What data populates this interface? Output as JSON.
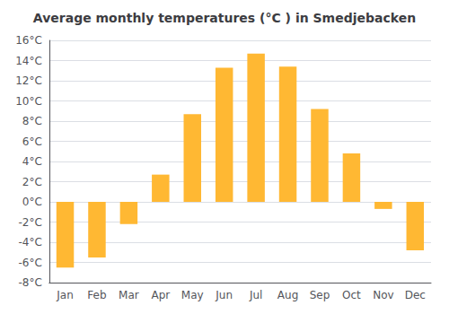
{
  "chart_data": {
    "type": "bar",
    "title": "Average monthly temperatures (°C ) in Smedjebacken",
    "categories": [
      "Jan",
      "Feb",
      "Mar",
      "Apr",
      "May",
      "Jun",
      "Jul",
      "Aug",
      "Sep",
      "Oct",
      "Nov",
      "Dec"
    ],
    "values": [
      -6.5,
      -5.5,
      -2.2,
      2.7,
      8.7,
      13.3,
      14.7,
      13.4,
      9.2,
      4.8,
      -0.7,
      -4.8
    ],
    "color": "#FFB833",
    "ylim": [
      -8,
      16
    ],
    "yticks": [
      {
        "value": -8,
        "label": "-8°C"
      },
      {
        "value": -6,
        "label": "-6°C"
      },
      {
        "value": -4,
        "label": "-4°C"
      },
      {
        "value": -2,
        "label": "-2°C"
      },
      {
        "value": 0,
        "label": "0°C"
      },
      {
        "value": 2,
        "label": "2°C"
      },
      {
        "value": 4,
        "label": "4°C"
      },
      {
        "value": 6,
        "label": "6°C"
      },
      {
        "value": 8,
        "label": "8°C"
      },
      {
        "value": 10,
        "label": "10°C"
      },
      {
        "value": 12,
        "label": "12°C"
      },
      {
        "value": 14,
        "label": "14°C"
      },
      {
        "value": 16,
        "label": "16°C"
      }
    ],
    "grid": true
  }
}
